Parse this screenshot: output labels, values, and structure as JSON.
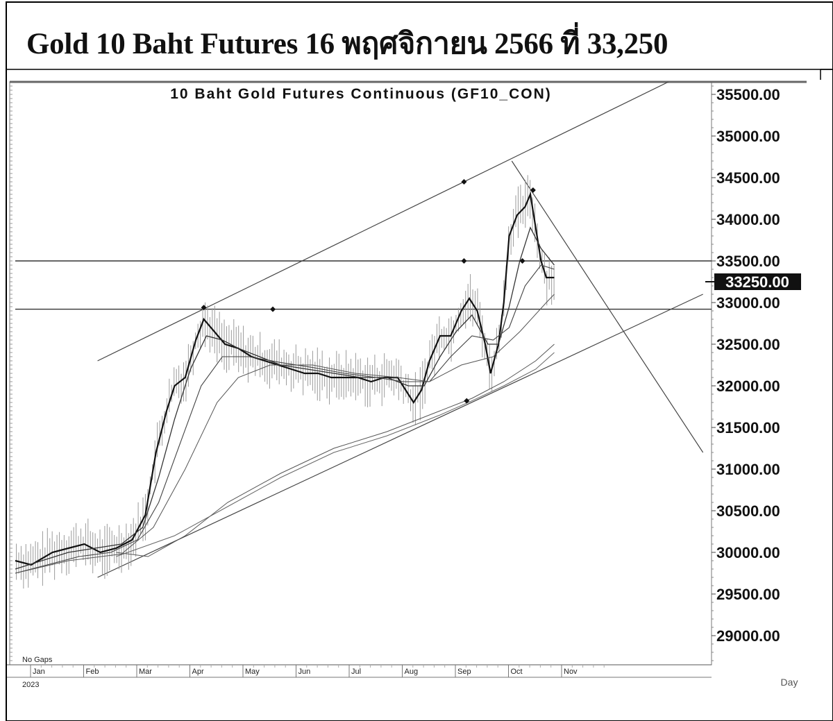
{
  "heading": "Gold 10 Baht Futures 16 พฤศจิกายน 2566 ที่ 33,250",
  "chart_data": {
    "type": "line",
    "title": "10 Baht Gold Futures Continuous (GF10_CON)",
    "no_gaps_label": "No Gaps",
    "year_label": "2023",
    "period_label": "Day",
    "current_price_label": "33250.00",
    "current_price": 33250,
    "ylim": [
      28650,
      35650
    ],
    "xlim": [
      0,
      12.95
    ],
    "y_ticks": [
      35500,
      35000,
      34500,
      34000,
      33500,
      33000,
      32500,
      32000,
      31500,
      31000,
      30500,
      30000,
      29500,
      29000
    ],
    "y_tick_labels": [
      "35500.00",
      "35000.00",
      "34500.00",
      "34000.00",
      "33500.00",
      "33000.00",
      "32500.00",
      "32000.00",
      "31500.00",
      "31000.00",
      "30500.00",
      "30000.00",
      "29500.00",
      "29000.00"
    ],
    "months": [
      "Jan",
      "Feb",
      "Mar",
      "Apr",
      "May",
      "Jun",
      "Jul",
      "Aug",
      "Sep",
      "Oct",
      "Nov"
    ],
    "month_positions": [
      0.5,
      1.5,
      2.5,
      3.5,
      4.5,
      5.5,
      6.5,
      7.5,
      8.5,
      9.5,
      10.5
    ],
    "horizontal_levels": [
      33500,
      32920
    ],
    "trendlines": [
      {
        "name": "upper-channel",
        "x": [
          1.55,
          12.3
        ],
        "y": [
          32300,
          35650
        ]
      },
      {
        "name": "lower-channel",
        "x": [
          1.55,
          12.95
        ],
        "y": [
          29700,
          33100
        ]
      },
      {
        "name": "down-trendline",
        "x": [
          9.35,
          12.95
        ],
        "y": [
          34700,
          31200
        ]
      }
    ],
    "markers": [
      {
        "x": 3.55,
        "y": 32940
      },
      {
        "x": 4.85,
        "y": 32920
      },
      {
        "x": 8.45,
        "y": 34450
      },
      {
        "x": 8.45,
        "y": 33500
      },
      {
        "x": 8.5,
        "y": 31820
      },
      {
        "x": 9.55,
        "y": 33500
      },
      {
        "x": 9.75,
        "y": 34350
      }
    ],
    "series": [
      {
        "values": [
          [
            0,
            29900
          ],
          [
            0.3,
            29850
          ],
          [
            0.7,
            30000
          ],
          [
            1.0,
            30050
          ],
          [
            1.3,
            30100
          ],
          [
            1.6,
            30000
          ],
          [
            1.9,
            30050
          ],
          [
            2.2,
            30150
          ],
          [
            2.45,
            30450
          ],
          [
            2.65,
            31200
          ],
          [
            2.85,
            31700
          ],
          [
            3.0,
            32000
          ],
          [
            3.2,
            32100
          ],
          [
            3.4,
            32550
          ],
          [
            3.55,
            32800
          ],
          [
            3.75,
            32650
          ],
          [
            3.95,
            32500
          ],
          [
            4.2,
            32450
          ],
          [
            4.45,
            32350
          ],
          [
            4.7,
            32300
          ],
          [
            4.95,
            32250
          ],
          [
            5.2,
            32200
          ],
          [
            5.45,
            32150
          ],
          [
            5.7,
            32150
          ],
          [
            5.95,
            32100
          ],
          [
            6.2,
            32100
          ],
          [
            6.45,
            32100
          ],
          [
            6.7,
            32050
          ],
          [
            6.95,
            32100
          ],
          [
            7.2,
            32100
          ],
          [
            7.35,
            31950
          ],
          [
            7.5,
            31800
          ],
          [
            7.65,
            31950
          ],
          [
            7.8,
            32300
          ],
          [
            8.0,
            32600
          ],
          [
            8.2,
            32600
          ],
          [
            8.4,
            32900
          ],
          [
            8.55,
            33050
          ],
          [
            8.7,
            32900
          ],
          [
            8.85,
            32500
          ],
          [
            8.95,
            32150
          ],
          [
            9.1,
            32500
          ],
          [
            9.2,
            33000
          ],
          [
            9.3,
            33800
          ],
          [
            9.45,
            34050
          ],
          [
            9.6,
            34150
          ],
          [
            9.7,
            34300
          ],
          [
            9.8,
            33900
          ],
          [
            9.9,
            33500
          ],
          [
            10.0,
            33300
          ],
          [
            10.15,
            33300
          ]
        ]
      },
      {
        "values": [
          [
            0,
            29800
          ],
          [
            0.5,
            29900
          ],
          [
            1.0,
            30000
          ],
          [
            1.5,
            30050
          ],
          [
            2.0,
            30100
          ],
          [
            2.4,
            30300
          ],
          [
            2.7,
            30900
          ],
          [
            3.0,
            31600
          ],
          [
            3.3,
            32200
          ],
          [
            3.6,
            32600
          ],
          [
            3.9,
            32550
          ],
          [
            4.2,
            32450
          ],
          [
            4.6,
            32350
          ],
          [
            5.0,
            32250
          ],
          [
            5.5,
            32200
          ],
          [
            6.0,
            32150
          ],
          [
            6.5,
            32100
          ],
          [
            7.0,
            32100
          ],
          [
            7.4,
            32000
          ],
          [
            7.7,
            32000
          ],
          [
            8.0,
            32350
          ],
          [
            8.3,
            32650
          ],
          [
            8.6,
            32850
          ],
          [
            8.9,
            32500
          ],
          [
            9.1,
            32500
          ],
          [
            9.3,
            32950
          ],
          [
            9.5,
            33500
          ],
          [
            9.7,
            33900
          ],
          [
            9.9,
            33650
          ],
          [
            10.15,
            33450
          ]
        ]
      },
      {
        "values": [
          [
            0,
            29750
          ],
          [
            0.6,
            29850
          ],
          [
            1.2,
            29950
          ],
          [
            1.8,
            30000
          ],
          [
            2.3,
            30150
          ],
          [
            2.7,
            30600
          ],
          [
            3.1,
            31300
          ],
          [
            3.5,
            32000
          ],
          [
            3.9,
            32350
          ],
          [
            4.4,
            32350
          ],
          [
            5.0,
            32280
          ],
          [
            5.6,
            32220
          ],
          [
            6.2,
            32150
          ],
          [
            6.8,
            32100
          ],
          [
            7.3,
            32050
          ],
          [
            7.8,
            32050
          ],
          [
            8.2,
            32350
          ],
          [
            8.6,
            32600
          ],
          [
            9.0,
            32550
          ],
          [
            9.3,
            32700
          ],
          [
            9.6,
            33200
          ],
          [
            9.9,
            33450
          ],
          [
            10.15,
            33400
          ]
        ]
      },
      {
        "values": [
          [
            0,
            29750
          ],
          [
            1.0,
            29900
          ],
          [
            2.0,
            29980
          ],
          [
            2.6,
            30300
          ],
          [
            3.2,
            31000
          ],
          [
            3.8,
            31800
          ],
          [
            4.2,
            32100
          ],
          [
            4.8,
            32250
          ],
          [
            5.6,
            32250
          ],
          [
            6.4,
            32150
          ],
          [
            7.2,
            32100
          ],
          [
            7.8,
            32050
          ],
          [
            8.4,
            32250
          ],
          [
            9.0,
            32350
          ],
          [
            9.5,
            32650
          ],
          [
            10.0,
            33000
          ],
          [
            10.15,
            33100
          ]
        ]
      },
      {
        "values": [
          [
            1.9,
            30000
          ],
          [
            2.5,
            29950
          ],
          [
            3.2,
            30200
          ],
          [
            4.0,
            30600
          ],
          [
            5.0,
            30950
          ],
          [
            6.0,
            31250
          ],
          [
            7.0,
            31450
          ],
          [
            8.0,
            31700
          ],
          [
            8.6,
            31850
          ],
          [
            9.2,
            32050
          ],
          [
            9.8,
            32300
          ],
          [
            10.15,
            32500
          ]
        ]
      },
      {
        "values": [
          [
            1.9,
            29950
          ],
          [
            3.0,
            30200
          ],
          [
            4.0,
            30550
          ],
          [
            5.0,
            30900
          ],
          [
            6.0,
            31200
          ],
          [
            7.0,
            31400
          ],
          [
            8.0,
            31650
          ],
          [
            8.6,
            31820
          ],
          [
            9.2,
            32000
          ],
          [
            9.8,
            32200
          ],
          [
            10.15,
            32400
          ]
        ]
      }
    ]
  }
}
